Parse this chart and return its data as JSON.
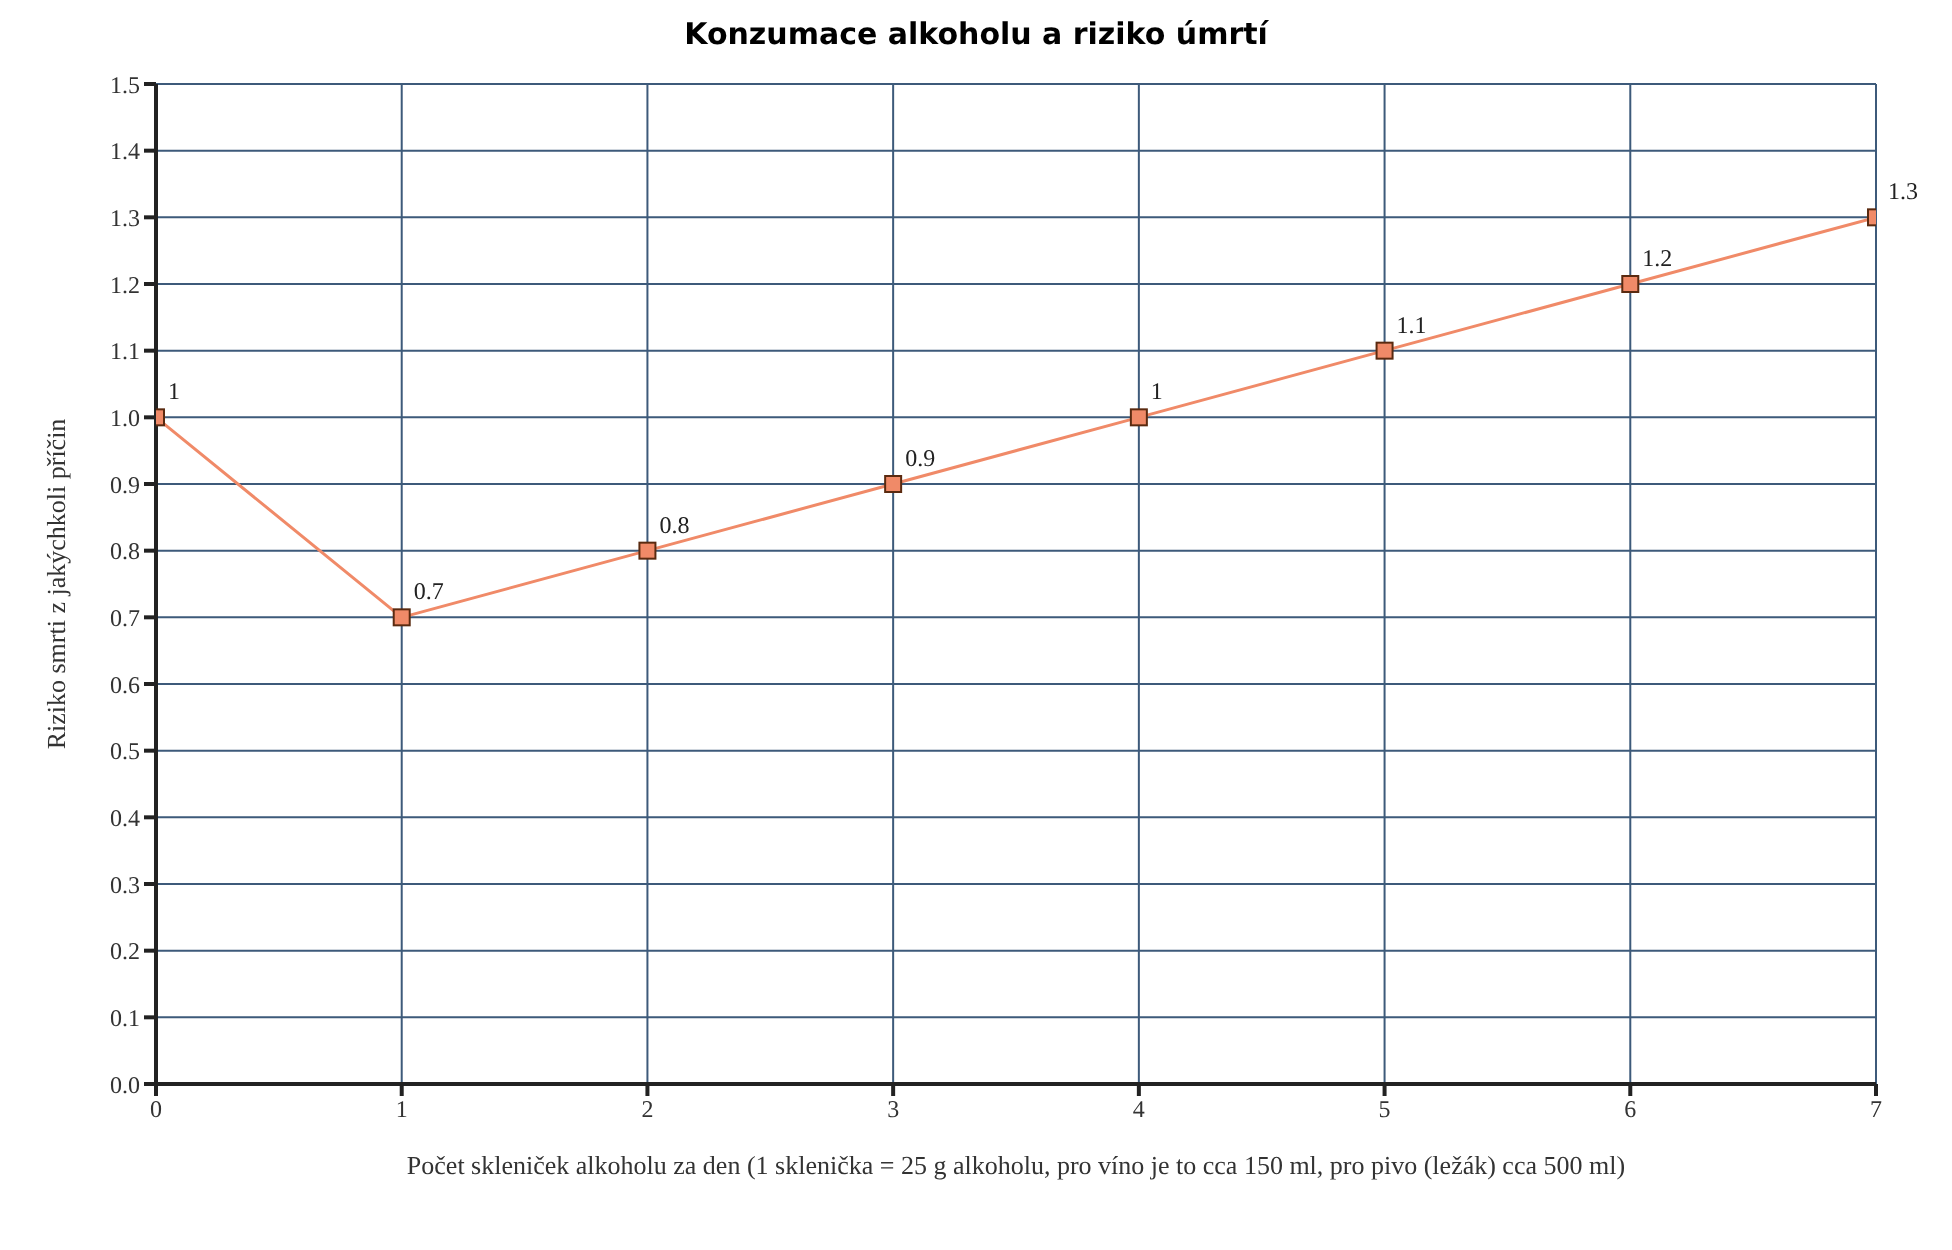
{
  "chart_data": {
    "type": "line",
    "title": "Konzumace alkoholu a riziko úmrtí",
    "xlabel": "Počet skleniček alkoholu za den (1 sklenička = 25 g alkoholu, pro víno je to cca 150 ml, pro pivo (ležák) cca 500 ml)",
    "ylabel": "Riziko smrti z jakýchkoli příčin",
    "x": [
      0,
      1,
      2,
      3,
      4,
      5,
      6,
      7
    ],
    "series": [
      {
        "color": "#f08a68",
        "values": [
          1,
          0.7,
          0.8,
          0.9,
          1,
          1.1,
          1.2,
          1.3
        ]
      }
    ],
    "xlim": [
      0,
      7
    ],
    "xticks": [
      0,
      1,
      2,
      3,
      4,
      5,
      6,
      7
    ],
    "ylim": [
      0,
      1.5
    ],
    "yticks": [
      {
        "value": 0,
        "label": "0.0"
      },
      0.1,
      0.2,
      0.3,
      0.4,
      0.5,
      0.6,
      0.7,
      0.8,
      0.9,
      {
        "value": 1,
        "label": "1.0"
      },
      1.1,
      1.2,
      1.3,
      1.4,
      1.5
    ],
    "grid": true,
    "marker": "square",
    "line_style": "solid",
    "data_labels": true,
    "legend": false
  }
}
